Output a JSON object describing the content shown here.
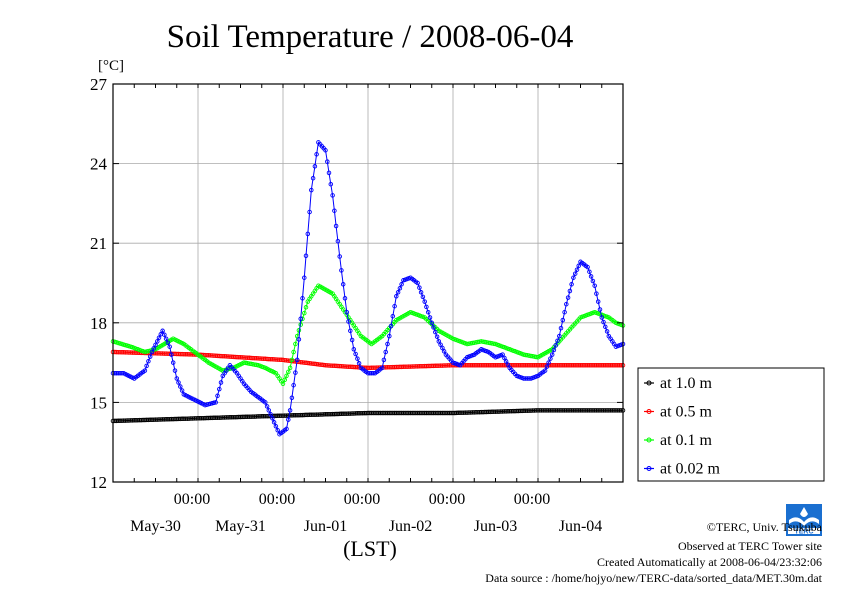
{
  "chart_data": {
    "type": "line",
    "title": "Soil Temperature / 2008-06-04",
    "ylabel": "[°C]",
    "xlabel": "(LST)",
    "ylim": [
      12,
      27
    ],
    "yticks": [
      "12",
      "15",
      "18",
      "21",
      "24",
      "27"
    ],
    "xlim_hours": [
      0,
      144
    ],
    "time_ticks": [
      "00:00",
      "00:00",
      "00:00",
      "00:00",
      "00:00"
    ],
    "date_labels": [
      "May-30",
      "May-31",
      "Jun-01",
      "Jun-02",
      "Jun-03",
      "Jun-04"
    ],
    "grid": true,
    "legend_position": "right",
    "series": [
      {
        "name": "at 1.0 m",
        "color": "#000000",
        "x": [
          0,
          24,
          48,
          72,
          96,
          120,
          144
        ],
        "values": [
          14.3,
          14.4,
          14.5,
          14.6,
          14.6,
          14.7,
          14.7
        ]
      },
      {
        "name": "at 0.5 m",
        "color": "#ff0000",
        "x": [
          0,
          24,
          48,
          60,
          72,
          96,
          120,
          144
        ],
        "values": [
          16.9,
          16.8,
          16.6,
          16.4,
          16.3,
          16.4,
          16.4,
          16.4
        ]
      },
      {
        "name": "at 0.1 m",
        "color": "#00ff00",
        "x": [
          0,
          5,
          9,
          12,
          17,
          20,
          24,
          27,
          31,
          34,
          37,
          41,
          43,
          46,
          48,
          50,
          52,
          55,
          58,
          62,
          66,
          70,
          73,
          76,
          80,
          84,
          88,
          92,
          96,
          100,
          104,
          108,
          112,
          116,
          120,
          124,
          128,
          132,
          136,
          140,
          142,
          144
        ],
        "values": [
          17.3,
          17.1,
          16.9,
          17.0,
          17.4,
          17.2,
          16.8,
          16.5,
          16.2,
          16.3,
          16.5,
          16.4,
          16.3,
          16.1,
          15.7,
          16.3,
          17.5,
          18.8,
          19.4,
          19.1,
          18.3,
          17.5,
          17.2,
          17.5,
          18.1,
          18.4,
          18.2,
          17.7,
          17.4,
          17.2,
          17.3,
          17.2,
          17.0,
          16.8,
          16.7,
          17.0,
          17.6,
          18.2,
          18.4,
          18.2,
          18.0,
          17.9
        ]
      },
      {
        "name": "at 0.02 m",
        "color": "#0000ff",
        "x": [
          0,
          3,
          6,
          9,
          11,
          14,
          16,
          18,
          20,
          23,
          26,
          29,
          31,
          33,
          35,
          37,
          39,
          41,
          43,
          45,
          47,
          49,
          50,
          52,
          54,
          56,
          58,
          60,
          62,
          64,
          66,
          68,
          70,
          72,
          74,
          76,
          78,
          80,
          82,
          84,
          86,
          88,
          90,
          92,
          94,
          96,
          98,
          100,
          102,
          104,
          106,
          108,
          110,
          112,
          114,
          116,
          118,
          120,
          122,
          124,
          126,
          128,
          130,
          132,
          134,
          136,
          138,
          140,
          142,
          144
        ],
        "values": [
          16.1,
          16.1,
          15.9,
          16.2,
          16.9,
          17.7,
          17.1,
          15.9,
          15.3,
          15.1,
          14.9,
          15.0,
          16.0,
          16.4,
          16.1,
          15.7,
          15.4,
          15.2,
          15.0,
          14.4,
          13.8,
          14.0,
          14.7,
          16.6,
          19.7,
          23.0,
          24.8,
          24.5,
          22.8,
          20.5,
          18.4,
          17.0,
          16.3,
          16.1,
          16.1,
          16.3,
          17.5,
          19.0,
          19.6,
          19.7,
          19.5,
          18.8,
          18.0,
          17.3,
          16.8,
          16.5,
          16.4,
          16.7,
          16.8,
          17.0,
          16.9,
          16.7,
          16.8,
          16.3,
          16.0,
          15.9,
          15.9,
          16.0,
          16.2,
          16.8,
          17.5,
          18.7,
          19.7,
          20.3,
          20.1,
          19.4,
          18.2,
          17.5,
          17.1,
          17.2
        ]
      }
    ]
  },
  "credits": {
    "copyright": "©TERC, Univ. Tsukuba",
    "observed": "Observed at TERC Tower site",
    "created": "Created Automatically at 2008-06-04/23:32:06",
    "source": "Data source : /home/hojyo/new/TERC-data/sorted_data/MET.30m.dat",
    "logo_text": "TERC"
  }
}
